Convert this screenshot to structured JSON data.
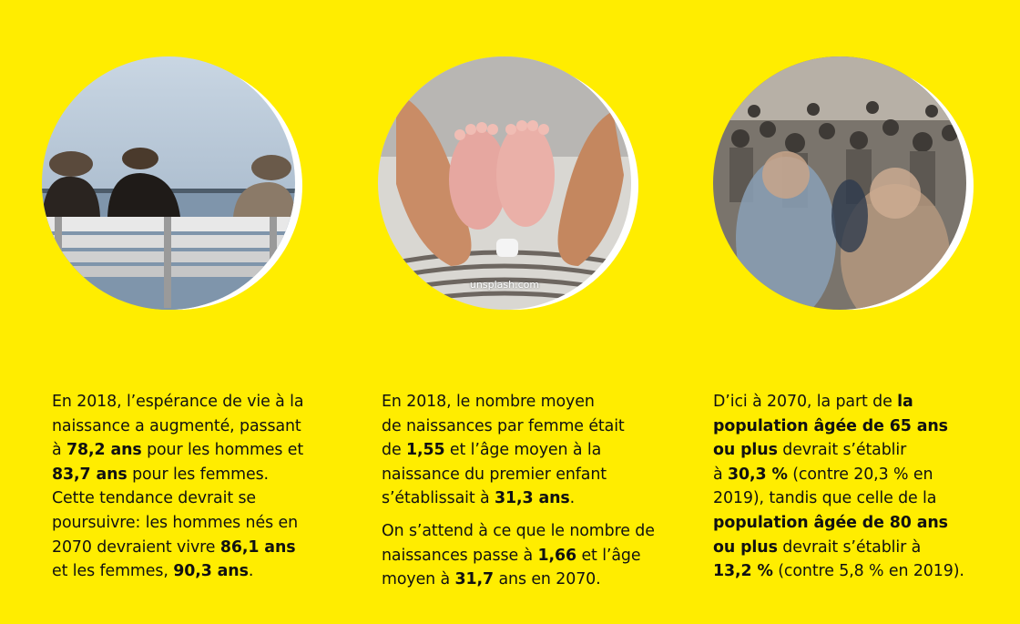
{
  "panels": [
    {
      "image": "elderly-people-on-bench-by-sea",
      "paragraphs": [
        [
          {
            "t": "En 2018, l’espérance de vie à la"
          },
          {
            "br": true
          },
          {
            "t": "naissance a augmenté, passant"
          },
          {
            "br": true
          },
          {
            "t": "à "
          },
          {
            "b": "78,2 ans"
          },
          {
            "t": " pour les hommes et"
          },
          {
            "br": true
          },
          {
            "b": "83,7 ans"
          },
          {
            "t": " pour les femmes."
          },
          {
            "br": true
          },
          {
            "t": "Cette tendance devrait se"
          },
          {
            "br": true
          },
          {
            "t": "poursuivre: les hommes nés en"
          },
          {
            "br": true
          },
          {
            "t": "2070 devraient vivre "
          },
          {
            "b": "86,1 ans"
          },
          {
            "br": true
          },
          {
            "t": "et les femmes, "
          },
          {
            "b": "90,3 ans"
          },
          {
            "t": "."
          }
        ]
      ]
    },
    {
      "image": "baby-feet-in-hands",
      "credit": "unsplash.com",
      "paragraphs": [
        [
          {
            "t": "En 2018, le nombre moyen"
          },
          {
            "br": true
          },
          {
            "t": "de naissances par femme était"
          },
          {
            "br": true
          },
          {
            "t": "de "
          },
          {
            "b": "1,55"
          },
          {
            "t": " et l’âge moyen à la"
          },
          {
            "br": true
          },
          {
            "t": "naissance du premier enfant"
          },
          {
            "br": true
          },
          {
            "t": "s’établissait à "
          },
          {
            "b": "31,3 ans"
          },
          {
            "t": "."
          }
        ],
        [
          {
            "t": "On s’attend à ce que le nombre de"
          },
          {
            "br": true
          },
          {
            "t": "naissances passe à "
          },
          {
            "b": "1,66"
          },
          {
            "t": " et l’âge"
          },
          {
            "br": true
          },
          {
            "t": "moyen à "
          },
          {
            "b": "31,7"
          },
          {
            "t": " ans en 2070."
          }
        ]
      ]
    },
    {
      "image": "crowd-in-street",
      "paragraphs": [
        [
          {
            "t": "D’ici à 2070, la part de "
          },
          {
            "b": "la"
          },
          {
            "br": true
          },
          {
            "b": "population âgée de 65 ans"
          },
          {
            "br": true
          },
          {
            "b": "ou plus"
          },
          {
            "t": " devrait s’établir"
          },
          {
            "br": true
          },
          {
            "t": "à "
          },
          {
            "b": "30,3 %"
          },
          {
            "t": " (contre 20,3 % en"
          },
          {
            "br": true
          },
          {
            "t": "2019), tandis que celle de la"
          },
          {
            "br": true
          },
          {
            "b": "population âgée de 80 ans"
          },
          {
            "br": true
          },
          {
            "b": "ou plus"
          },
          {
            "t": " devrait s’établir à"
          },
          {
            "br": true
          },
          {
            "b": "13,2 %"
          },
          {
            "t": " (contre 5,8 % en 2019)."
          }
        ]
      ]
    }
  ],
  "colors": {
    "background": "#FFED00",
    "ring": "#FFFFFF",
    "text": "#111111"
  }
}
